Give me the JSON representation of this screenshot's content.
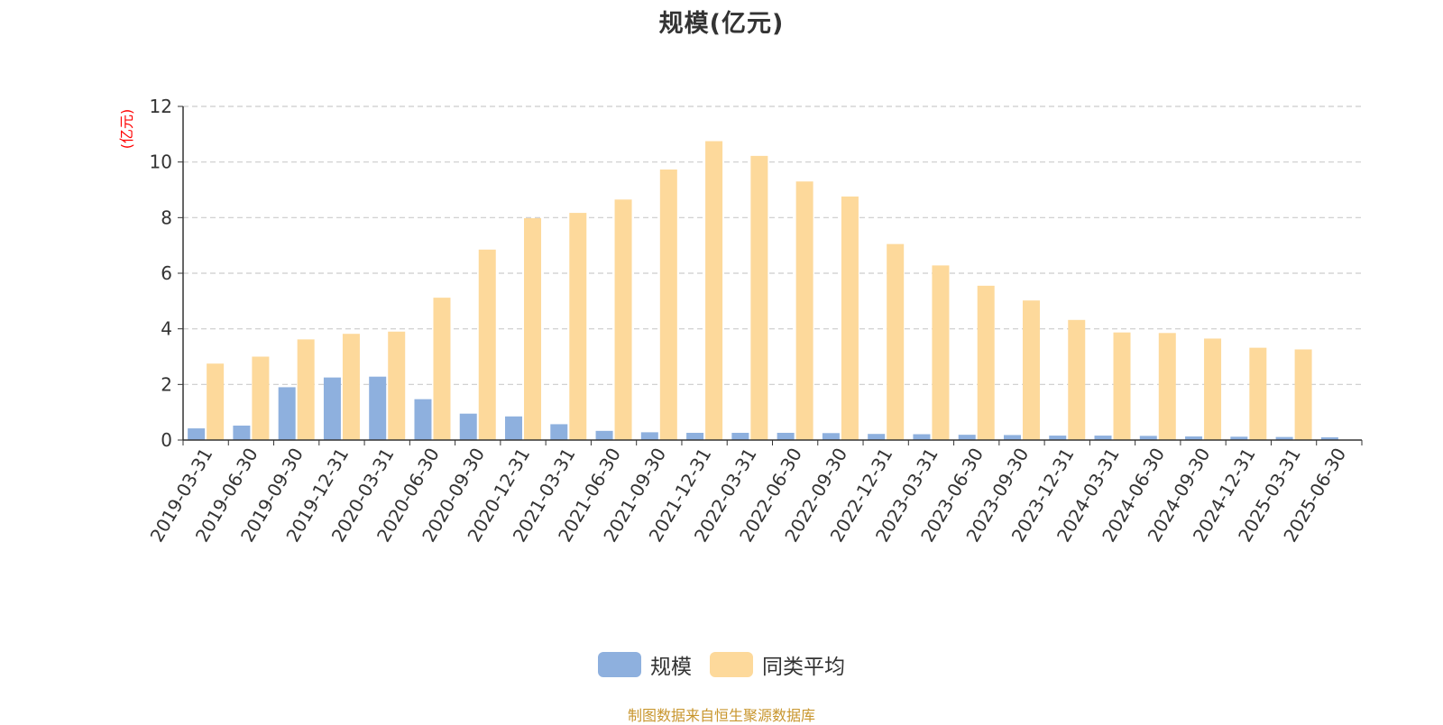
{
  "chart_data": {
    "type": "bar",
    "title": "规模(亿元)",
    "ylabel": "(亿元)",
    "ylim": [
      0,
      12
    ],
    "yticks": [
      0,
      2,
      4,
      6,
      8,
      10,
      12
    ],
    "grid": "y-dashed",
    "legend_position": "bottom-center",
    "categories": [
      "2019-03-31",
      "2019-06-30",
      "2019-09-30",
      "2019-12-31",
      "2020-03-31",
      "2020-06-30",
      "2020-09-30",
      "2020-12-31",
      "2021-03-31",
      "2021-06-30",
      "2021-09-30",
      "2021-12-31",
      "2022-03-31",
      "2022-06-30",
      "2022-09-30",
      "2022-12-31",
      "2023-03-31",
      "2023-06-30",
      "2023-09-30",
      "2023-12-31",
      "2024-03-31",
      "2024-06-30",
      "2024-09-30",
      "2024-12-31",
      "2025-03-31",
      "2025-06-30"
    ],
    "series": [
      {
        "name": "规模",
        "color": "#8eb0de",
        "values": [
          0.42,
          0.52,
          1.9,
          2.25,
          2.28,
          1.47,
          0.95,
          0.85,
          0.57,
          0.33,
          0.28,
          0.26,
          0.26,
          0.26,
          0.25,
          0.22,
          0.21,
          0.19,
          0.18,
          0.16,
          0.16,
          0.15,
          0.13,
          0.12,
          0.11,
          0.1
        ]
      },
      {
        "name": "同类平均",
        "color": "#fdd99b",
        "values": [
          2.75,
          3.0,
          3.62,
          3.82,
          3.9,
          5.12,
          6.85,
          7.98,
          8.17,
          8.65,
          9.73,
          10.75,
          10.22,
          9.3,
          8.76,
          7.05,
          6.28,
          5.55,
          5.02,
          4.32,
          3.87,
          3.85,
          3.65,
          3.32,
          3.26,
          null
        ]
      }
    ]
  },
  "source_note": "制图数据来自恒生聚源数据库",
  "colors": {
    "axis": "#333333",
    "grid": "#cccccc",
    "ylabel": "#ff0000",
    "source": "#c8962e"
  }
}
